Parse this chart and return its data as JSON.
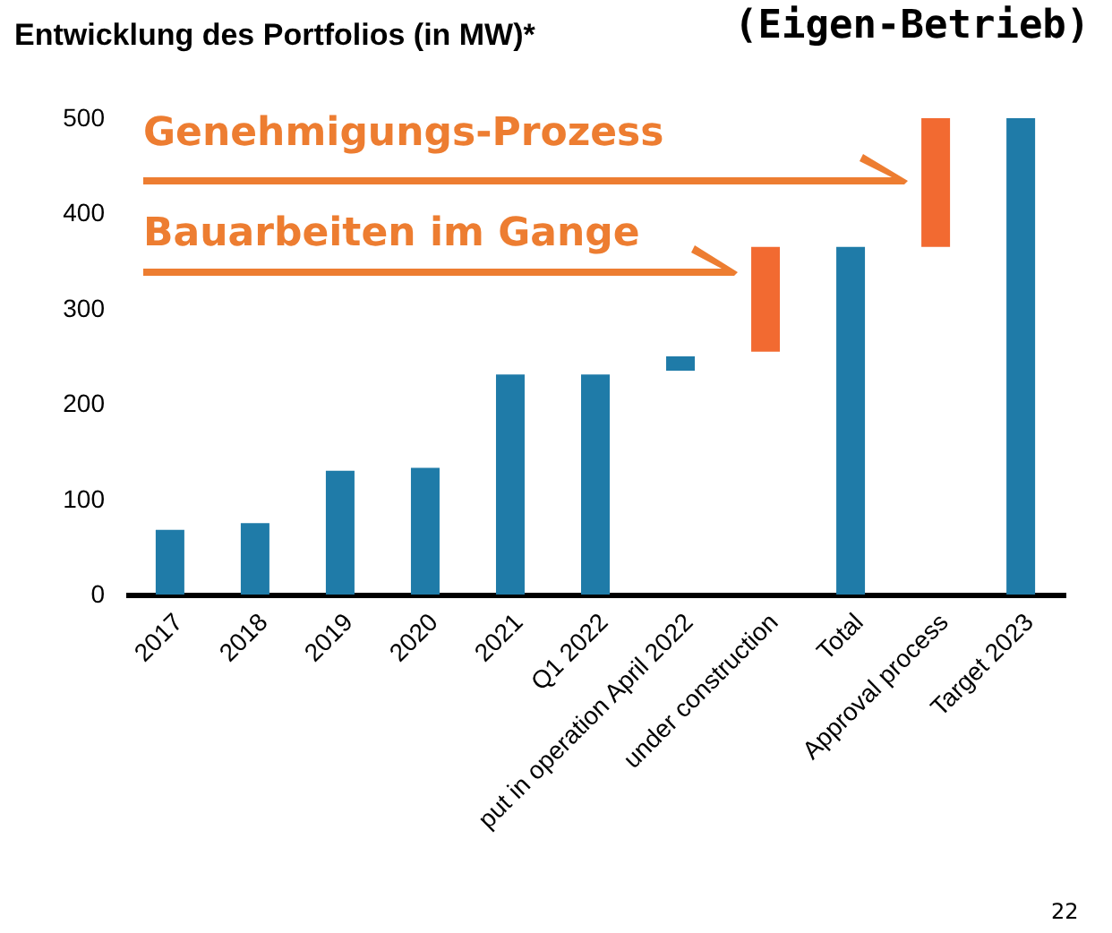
{
  "chart_data": {
    "type": "bar",
    "title": "Entwicklung des Portfolios (in MW)*",
    "subtitle": "(Eigen-Betrieb)",
    "categories": [
      "2017",
      "2018",
      "2019",
      "2020",
      "2021",
      "Q1 2022",
      "put in operation April 2022",
      "under construction",
      "Total",
      "Approval process",
      "Target 2023"
    ],
    "values": [
      68,
      75,
      130,
      133,
      231,
      231,
      15,
      110,
      365,
      135,
      500
    ],
    "base": [
      0,
      0,
      0,
      0,
      0,
      0,
      235,
      255,
      0,
      365,
      0
    ],
    "colors": [
      "#1f7ba8",
      "#1f7ba8",
      "#1f7ba8",
      "#1f7ba8",
      "#1f7ba8",
      "#1f7ba8",
      "#1f7ba8",
      "#f26a31",
      "#1f7ba8",
      "#f26a31",
      "#1f7ba8"
    ],
    "ylim": [
      0,
      500
    ],
    "yticks": [
      0,
      100,
      200,
      300,
      400,
      500
    ],
    "grid": false,
    "annotations": [
      "Genehmigungs-Prozess",
      "Bauarbeiten im Gange",
      "22"
    ]
  }
}
